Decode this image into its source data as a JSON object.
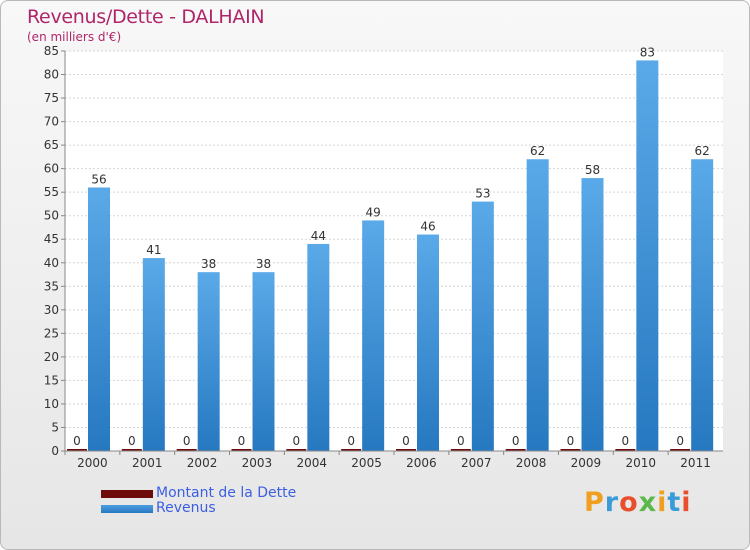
{
  "colors": {
    "debt": "#6e0b0b",
    "revenue": "#4d9de0",
    "revenue_dark": "#2779c2",
    "title": "#b0256a",
    "legend_text": "#3b5fe0"
  },
  "chart_data": {
    "type": "bar",
    "title": "Revenus/Dette - DALHAIN",
    "subtitle": "(en milliers d'€)",
    "categories": [
      "2000",
      "2001",
      "2002",
      "2003",
      "2004",
      "2005",
      "2006",
      "2007",
      "2008",
      "2009",
      "2010",
      "2011"
    ],
    "series": [
      {
        "name": "Montant de la Dette",
        "values": [
          0,
          0,
          0,
          0,
          0,
          0,
          0,
          0,
          0,
          0,
          0,
          0
        ]
      },
      {
        "name": "Revenus",
        "values": [
          56,
          41,
          38,
          38,
          44,
          49,
          46,
          53,
          62,
          58,
          83,
          62
        ]
      }
    ],
    "ylim": [
      0,
      85
    ],
    "yticks": [
      0,
      5,
      10,
      15,
      20,
      25,
      30,
      35,
      40,
      45,
      50,
      55,
      60,
      65,
      70,
      75,
      80,
      85
    ],
    "grid": true,
    "legend": "bottom-left"
  },
  "logo": {
    "text": "Proxiti"
  }
}
